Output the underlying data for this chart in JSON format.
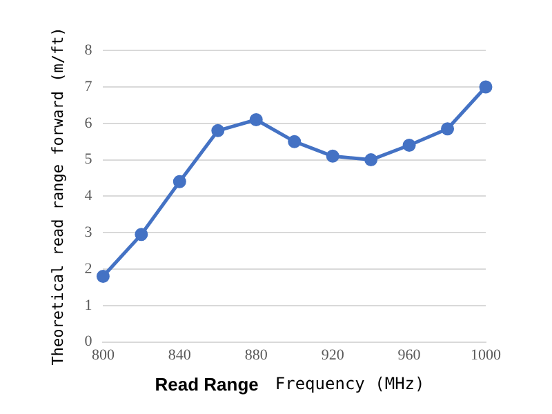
{
  "chart_data": {
    "type": "line",
    "xlabel": "Frequency (MHz)",
    "ylabel": "Theoretical read range forward (m/ft)",
    "annotations": [
      "Read Range"
    ],
    "categories": [
      "800",
      null,
      "840",
      null,
      "880",
      null,
      "920",
      null,
      "960",
      null,
      "1000"
    ],
    "series": [
      {
        "color": "#4472c4",
        "values": [
          1.8,
          2.95,
          4.4,
          5.8,
          6.1,
          5.5,
          5.1,
          5.0,
          5.4,
          5.85,
          7.0
        ]
      }
    ],
    "ylim": [
      0,
      8
    ],
    "yticks": [
      0,
      1,
      2,
      3,
      4,
      5,
      6,
      7,
      8
    ],
    "grid": "y",
    "legend": false,
    "marker": "circle",
    "line_style": "solid"
  }
}
